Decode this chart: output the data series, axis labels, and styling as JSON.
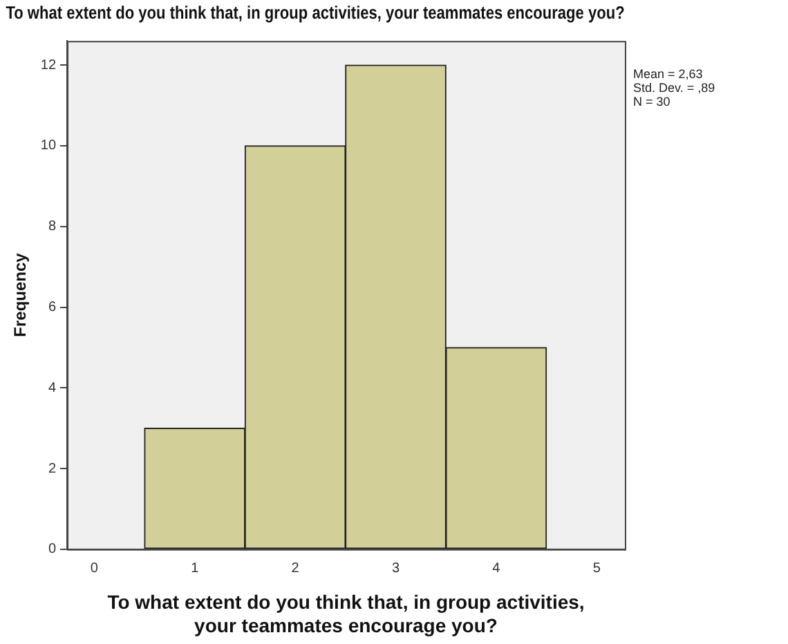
{
  "chart_data": {
    "type": "histogram",
    "title": "To what extent do you think that, in group activities, your teammates encourage you?",
    "xlabel": "To what extent do you think that, in group activities, your teammates encourage you?",
    "ylabel": "Frequency",
    "bins": [
      0.5,
      1.5,
      2.5,
      3.5,
      4.5
    ],
    "values": [
      3,
      10,
      12,
      5
    ],
    "color": "#d2cf98",
    "xlim": [
      -0.27,
      5.28
    ],
    "xticks": [
      0,
      1,
      2,
      3,
      4,
      5
    ],
    "ylim": [
      0,
      12.6
    ],
    "yticks": [
      0,
      2,
      4,
      6,
      8,
      10,
      12
    ],
    "grid": false,
    "annotations": [
      "Mean = 2,63",
      "Std. Dev. = ,89",
      "N = 30"
    ]
  }
}
